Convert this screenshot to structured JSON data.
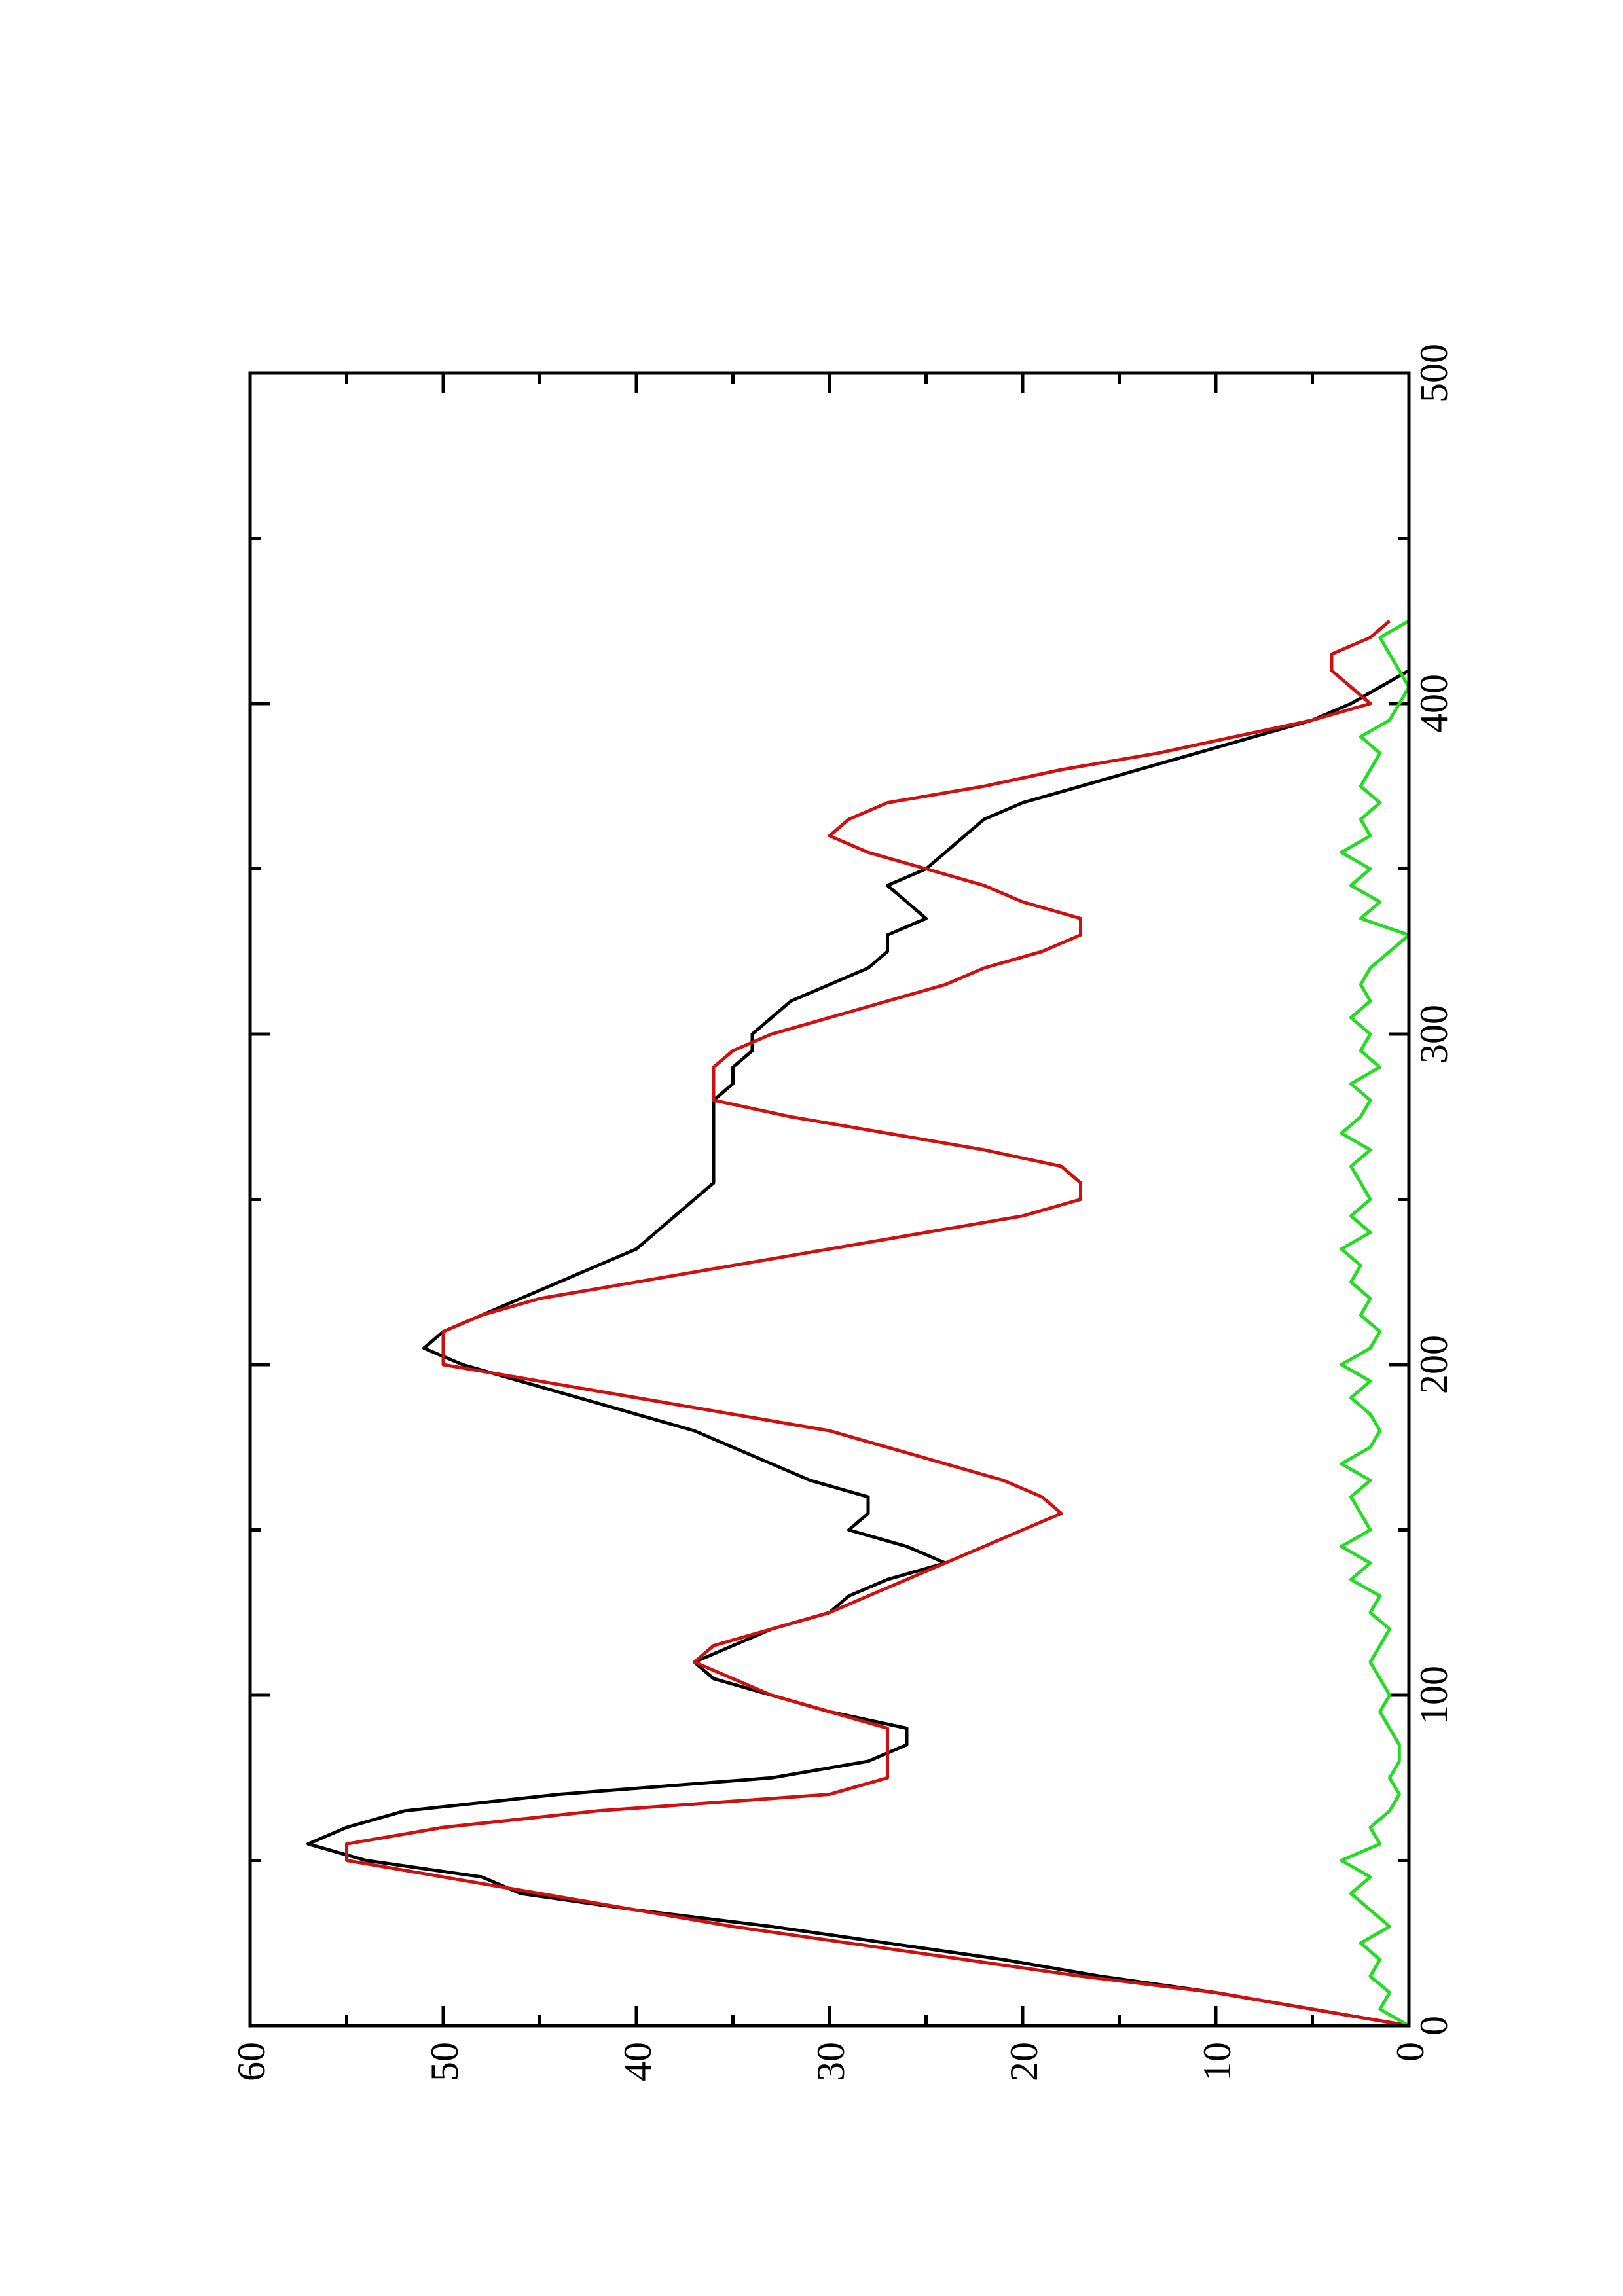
{
  "chart_data": {
    "type": "line",
    "orientation": "rotated-90-ccw",
    "xlabel": "",
    "ylabel": "",
    "title": "",
    "xlim": [
      0,
      500
    ],
    "ylim": [
      0,
      60
    ],
    "x_major_ticks": [
      0,
      100,
      200,
      300,
      400,
      500
    ],
    "x_minor_ticks": [
      50,
      150,
      250,
      350,
      450
    ],
    "y_major_ticks": [
      0,
      10,
      20,
      30,
      40,
      50,
      60
    ],
    "y_minor_ticks": [
      5,
      15,
      25,
      35,
      45,
      55
    ],
    "x_tick_labels": [
      "0",
      "100",
      "200",
      "300",
      "400",
      "500"
    ],
    "y_tick_labels": [
      "0",
      "10",
      "20",
      "30",
      "40",
      "50",
      "60"
    ],
    "grid": false,
    "legend": "none",
    "series": [
      {
        "color": "#000000",
        "x": [
          0,
          5,
          10,
          15,
          20,
          25,
          30,
          35,
          40,
          45,
          50,
          55,
          60,
          65,
          70,
          75,
          80,
          85,
          90,
          95,
          100,
          105,
          110,
          115,
          120,
          125,
          130,
          135,
          140,
          145,
          150,
          155,
          160,
          165,
          170,
          175,
          180,
          185,
          190,
          195,
          200,
          205,
          210,
          215,
          220,
          225,
          230,
          235,
          240,
          245,
          250,
          255,
          260,
          265,
          270,
          275,
          280,
          285,
          290,
          295,
          300,
          305,
          310,
          315,
          320,
          325,
          330,
          335,
          340,
          345,
          350,
          355,
          360,
          365,
          370,
          375,
          380,
          385,
          390,
          395,
          400,
          405,
          410,
          415,
          420,
          425
        ],
        "y": [
          0,
          5,
          10,
          16,
          21,
          27,
          33,
          40,
          46,
          48,
          54,
          57,
          55,
          52,
          44,
          33,
          28,
          26,
          26,
          30,
          33,
          36,
          37,
          35,
          33,
          30,
          29,
          27,
          24,
          26,
          29,
          28,
          28,
          31,
          33,
          35,
          37,
          40,
          43,
          46,
          49,
          51,
          50,
          48,
          46,
          44,
          42,
          40,
          39,
          38,
          37,
          36,
          36,
          36,
          36,
          36,
          36,
          35,
          35,
          34,
          34,
          33,
          32,
          30,
          28,
          27,
          27,
          25,
          26,
          27,
          25,
          24,
          23,
          22,
          20,
          17,
          14,
          11,
          8,
          5,
          3,
          1.5,
          0,
          0,
          0,
          0
        ]
      },
      {
        "color": "#d01010",
        "x": [
          0,
          5,
          10,
          15,
          20,
          25,
          30,
          35,
          40,
          45,
          50,
          55,
          60,
          65,
          70,
          75,
          80,
          85,
          90,
          95,
          100,
          105,
          110,
          115,
          120,
          125,
          130,
          135,
          140,
          145,
          150,
          155,
          160,
          165,
          170,
          175,
          180,
          185,
          190,
          195,
          200,
          205,
          210,
          215,
          220,
          225,
          230,
          235,
          240,
          245,
          250,
          255,
          260,
          265,
          270,
          275,
          280,
          285,
          290,
          295,
          300,
          305,
          310,
          315,
          320,
          325,
          330,
          335,
          340,
          345,
          350,
          355,
          360,
          365,
          370,
          375,
          380,
          385,
          390,
          395,
          400,
          405,
          410,
          415,
          420,
          425
        ],
        "y": [
          0,
          5,
          10,
          17,
          23,
          29,
          35,
          40,
          45,
          50,
          55,
          55,
          50,
          42,
          30,
          27,
          27,
          27,
          27,
          30,
          33,
          35,
          37,
          36,
          33,
          30,
          28,
          26,
          24,
          22,
          20,
          18,
          19,
          21,
          24,
          27,
          30,
          35,
          40,
          45,
          50,
          50,
          50,
          48,
          45,
          40,
          35,
          30,
          25,
          20,
          17,
          17,
          18,
          22,
          27,
          32,
          36,
          36,
          36,
          35,
          33,
          30,
          27,
          24,
          22,
          19,
          17,
          17,
          20,
          22,
          25,
          28,
          30,
          29,
          27,
          22,
          18,
          13,
          9,
          5,
          2,
          3,
          4,
          4,
          2,
          1
        ]
      },
      {
        "color": "#22dd22",
        "x": [
          0,
          5,
          10,
          15,
          20,
          25,
          30,
          35,
          40,
          45,
          50,
          55,
          60,
          65,
          70,
          75,
          80,
          85,
          90,
          95,
          100,
          105,
          110,
          115,
          120,
          125,
          130,
          135,
          140,
          145,
          150,
          155,
          160,
          165,
          170,
          175,
          180,
          185,
          190,
          195,
          200,
          205,
          210,
          215,
          220,
          225,
          230,
          235,
          240,
          245,
          250,
          255,
          260,
          265,
          270,
          275,
          280,
          285,
          290,
          295,
          300,
          305,
          310,
          315,
          320,
          325,
          330,
          335,
          340,
          345,
          350,
          355,
          360,
          365,
          370,
          375,
          380,
          385,
          390,
          395,
          400,
          405,
          410,
          415,
          420,
          425
        ],
        "y": [
          0,
          1.5,
          1,
          2,
          1.5,
          2.5,
          1,
          2,
          3,
          2,
          3.5,
          1.5,
          2,
          1,
          0.5,
          1,
          0.5,
          0.5,
          1,
          1.5,
          1,
          1.5,
          2,
          1.5,
          1,
          2,
          1.5,
          3,
          2,
          3.5,
          2,
          2.5,
          3,
          2,
          3.5,
          2,
          1.5,
          2,
          3,
          2,
          3.5,
          2,
          1.5,
          2.5,
          2,
          3,
          2.5,
          3.5,
          2,
          3,
          2,
          2.5,
          3,
          2,
          3.5,
          2.5,
          2,
          3,
          1.5,
          2.5,
          2,
          3,
          2,
          2.5,
          2,
          1,
          0,
          2.5,
          1.5,
          3,
          2,
          3.5,
          2,
          2.5,
          1.5,
          2.5,
          2,
          1.5,
          2.5,
          1,
          0.5,
          0,
          0.5,
          1,
          1.5,
          0
        ]
      }
    ]
  }
}
